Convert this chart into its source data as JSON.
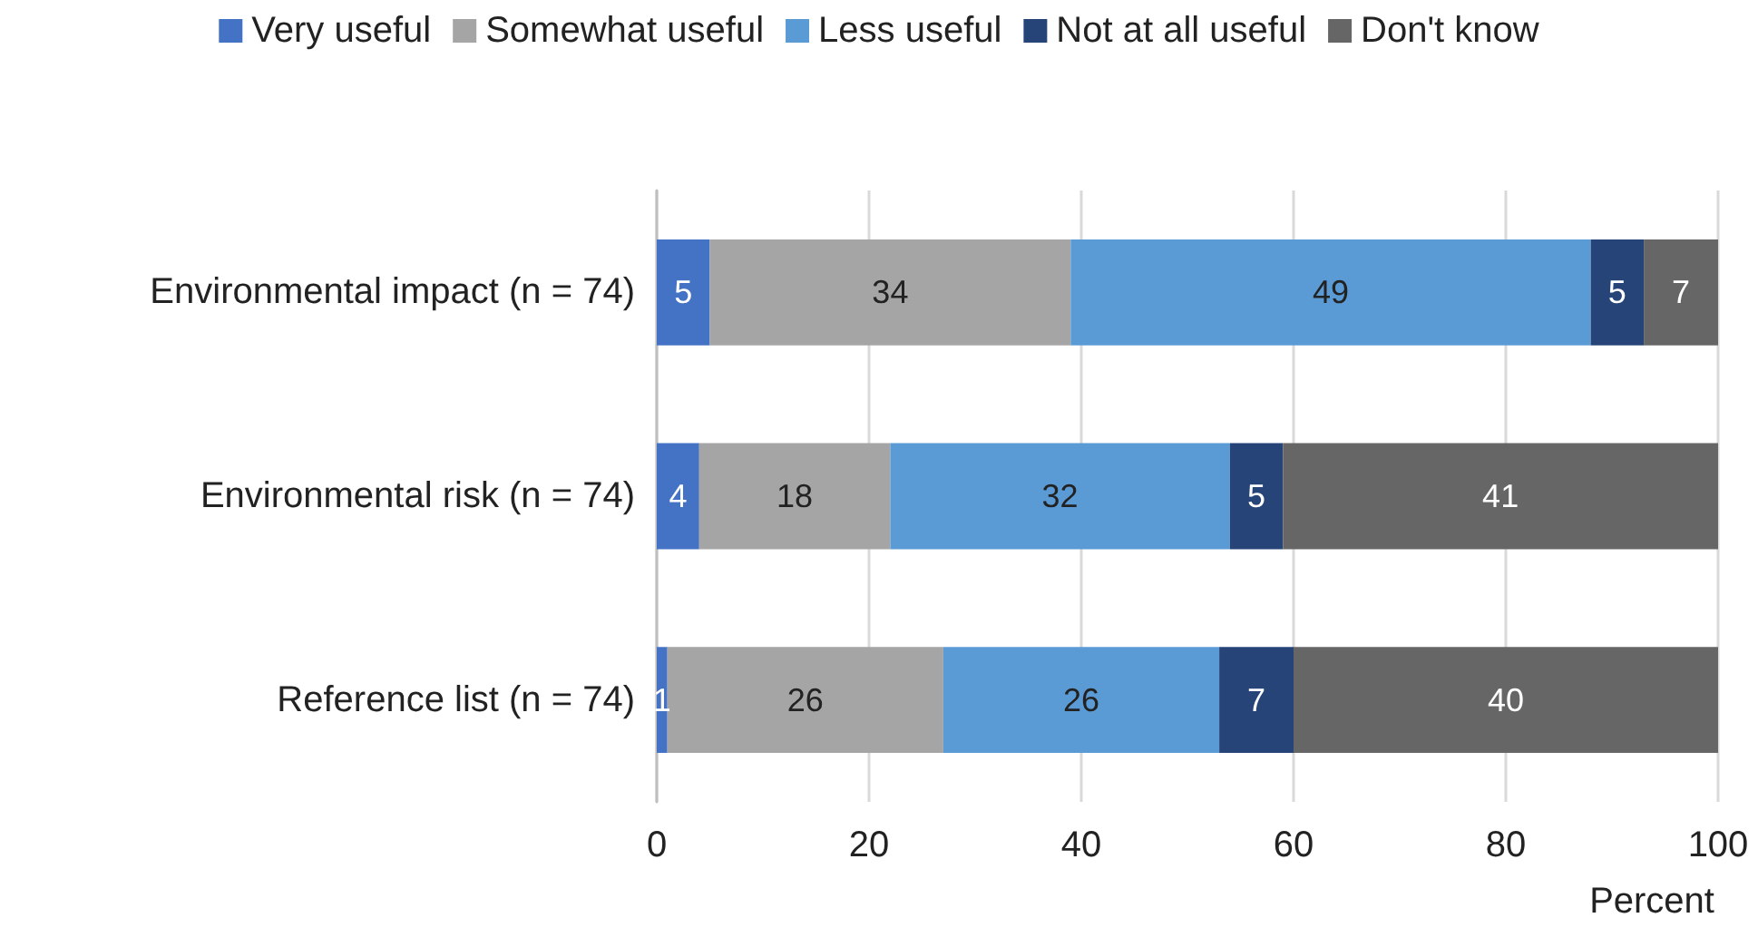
{
  "chart_data": {
    "type": "bar",
    "orientation": "horizontal",
    "stacked": true,
    "xlabel": "Percent",
    "categories": [
      "Environmental impact (n = 74)",
      "Environmental risk (n = 74)",
      "Reference list (n = 74)"
    ],
    "series": [
      {
        "name": "Very useful",
        "color": "#4472c4",
        "values": [
          5,
          4,
          1
        ]
      },
      {
        "name": "Somewhat useful",
        "color": "#a5a5a5",
        "values": [
          34,
          18,
          26
        ]
      },
      {
        "name": "Less useful",
        "color": "#5b9bd5",
        "values": [
          49,
          32,
          26
        ]
      },
      {
        "name": "Not at all useful",
        "color": "#264478",
        "values": [
          5,
          5,
          7
        ]
      },
      {
        "name": "Don't know",
        "color": "#666666",
        "values": [
          7,
          41,
          40
        ]
      }
    ],
    "xlim": [
      0,
      100
    ],
    "xticks": [
      0,
      20,
      40,
      60,
      80,
      100
    ],
    "grid": "x",
    "legend": "top",
    "data_labels": true
  }
}
